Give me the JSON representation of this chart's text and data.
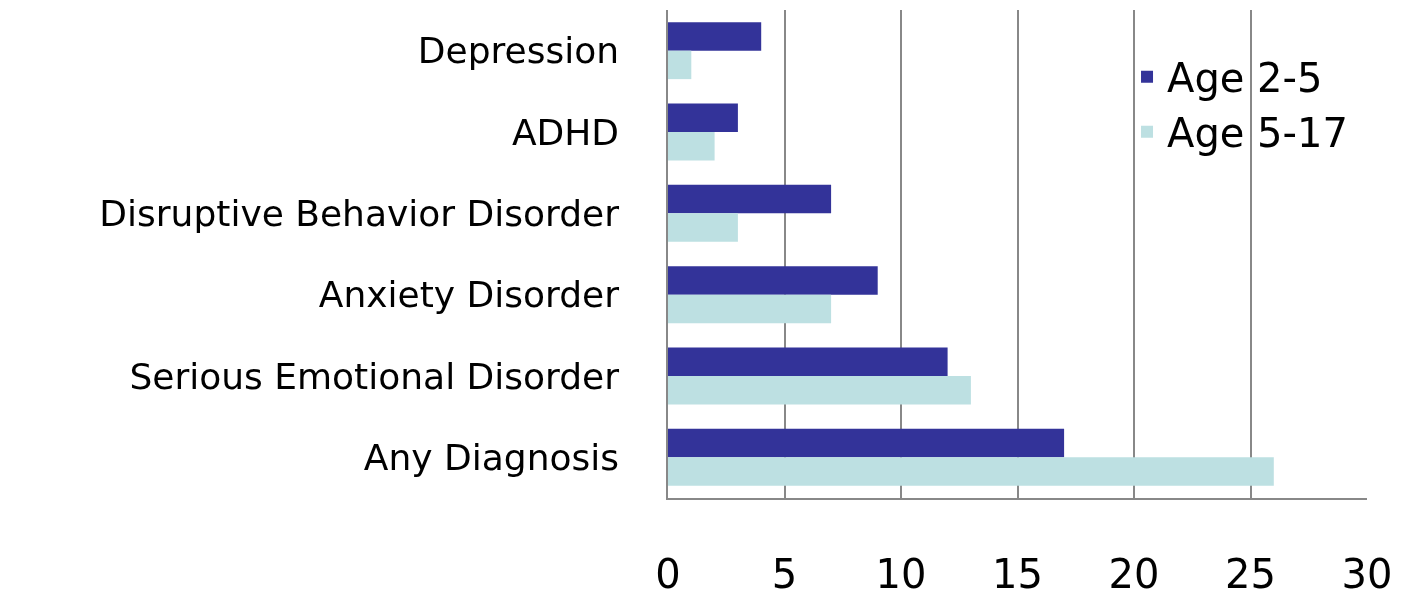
{
  "chart_data": {
    "type": "bar",
    "orientation": "horizontal",
    "categories": [
      "Depression",
      "ADHD",
      "Disruptive Behavior Disorder",
      "Anxiety Disorder",
      "Serious Emotional Disorder",
      "Any Diagnosis"
    ],
    "series": [
      {
        "name": "Age 2-5",
        "color": "#333399",
        "values": [
          4,
          3,
          7,
          9,
          12,
          17
        ]
      },
      {
        "name": "Age 5-17",
        "color": "#bde0e2",
        "values": [
          1,
          2,
          3,
          7,
          13,
          26
        ]
      }
    ],
    "xlim": [
      0,
      30
    ],
    "xticks": [
      0,
      5,
      10,
      15,
      20,
      25,
      30
    ],
    "grid": "x",
    "legend": "top right"
  }
}
